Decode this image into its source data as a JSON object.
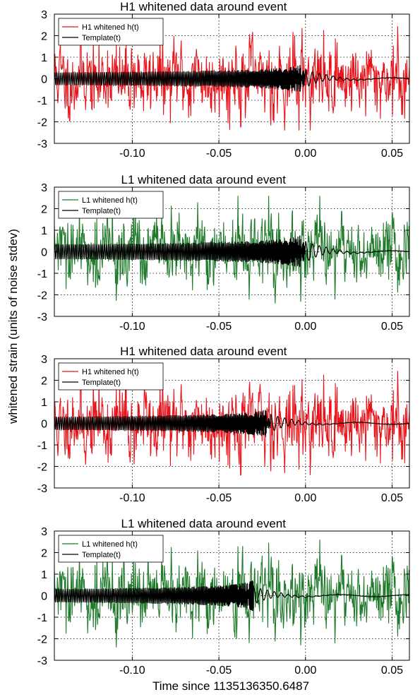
{
  "figure": {
    "ylabel": "whitened strain (units of noise stdev)",
    "xlabel": "Time since 1135136350.6487"
  },
  "colors": {
    "H1": "#e8141b",
    "L1": "#1f7a2b",
    "template": "#000000"
  },
  "chart_data": [
    {
      "type": "line",
      "title": "H1 whitened data around event",
      "detector": "H1",
      "xlim": [
        -0.145,
        0.06
      ],
      "ylim": [
        -3,
        3
      ],
      "xticks": [
        -0.1,
        -0.05,
        0.0,
        0.05
      ],
      "xtick_labels": [
        "-0.10",
        "-0.05",
        "0.00",
        "0.05"
      ],
      "yticks": [
        -3,
        -2,
        -1,
        0,
        1,
        2,
        3
      ],
      "ytick_labels": [
        "-3",
        "-2",
        "-1",
        "0",
        "1",
        "2",
        "3"
      ],
      "grid": "dotted",
      "legend": {
        "placement": "top-left",
        "entries": [
          "H1 whitened h(t)",
          "Template(t)"
        ]
      },
      "noise_amplitude": 0.8,
      "template_amplitude": 0.3,
      "merger_time": 0.0,
      "series": [
        {
          "name": "H1 whitened h(t)",
          "kind": "noisy",
          "seed": 11,
          "color_key": "H1"
        },
        {
          "name": "Template(t)",
          "kind": "chirp",
          "color_key": "template"
        }
      ]
    },
    {
      "type": "line",
      "title": "L1 whitened data around event",
      "detector": "L1",
      "xlim": [
        -0.145,
        0.06
      ],
      "ylim": [
        -3,
        3
      ],
      "xticks": [
        -0.1,
        -0.05,
        0.0,
        0.05
      ],
      "xtick_labels": [
        "-0.10",
        "-0.05",
        "0.00",
        "0.05"
      ],
      "yticks": [
        -3,
        -2,
        -1,
        0,
        1,
        2,
        3
      ],
      "ytick_labels": [
        "-3",
        "-2",
        "-1",
        "0",
        "1",
        "2",
        "3"
      ],
      "grid": "dotted",
      "legend": {
        "placement": "top-left",
        "entries": [
          "L1 whitened h(t)",
          "Template(t)"
        ]
      },
      "noise_amplitude": 0.75,
      "template_amplitude": 0.35,
      "merger_time": 0.0,
      "series": [
        {
          "name": "L1 whitened h(t)",
          "kind": "noisy",
          "seed": 29,
          "color_key": "L1"
        },
        {
          "name": "Template(t)",
          "kind": "chirp",
          "color_key": "template"
        }
      ]
    },
    {
      "type": "line",
      "title": "H1 whitened data around event",
      "detector": "H1",
      "xlim": [
        -0.145,
        0.06
      ],
      "ylim": [
        -3,
        3
      ],
      "xticks": [
        -0.1,
        -0.05,
        0.0,
        0.05
      ],
      "xtick_labels": [
        "-0.10",
        "-0.05",
        "0.00",
        "0.05"
      ],
      "yticks": [
        -3,
        -2,
        -1,
        0,
        1,
        2,
        3
      ],
      "ytick_labels": [
        "-3",
        "-2",
        "-1",
        "0",
        "1",
        "2",
        "3"
      ],
      "grid": "dotted",
      "legend": {
        "placement": "top-left",
        "entries": [
          "H1 whitened h(t)",
          "Template(t)"
        ]
      },
      "noise_amplitude": 0.8,
      "template_amplitude": 0.3,
      "merger_time": -0.02,
      "series": [
        {
          "name": "H1 whitened h(t)",
          "kind": "noisy",
          "seed": 11,
          "color_key": "H1"
        },
        {
          "name": "Template(t)",
          "kind": "chirp",
          "color_key": "template"
        }
      ]
    },
    {
      "type": "line",
      "title": "L1 whitened data around event",
      "detector": "L1",
      "xlim": [
        -0.145,
        0.06
      ],
      "ylim": [
        -3,
        3
      ],
      "xticks": [
        -0.1,
        -0.05,
        0.0,
        0.05
      ],
      "xtick_labels": [
        "-0.10",
        "-0.05",
        "0.00",
        "0.05"
      ],
      "yticks": [
        -3,
        -2,
        -1,
        0,
        1,
        2,
        3
      ],
      "ytick_labels": [
        "-3",
        "-2",
        "-1",
        "0",
        "1",
        "2",
        "3"
      ],
      "grid": "dotted",
      "legend": {
        "placement": "top-left",
        "entries": [
          "L1 whitened h(t)",
          "Template(t)"
        ]
      },
      "noise_amplitude": 0.75,
      "template_amplitude": 0.3,
      "merger_time": -0.03,
      "series": [
        {
          "name": "L1 whitened h(t)",
          "kind": "noisy",
          "seed": 29,
          "color_key": "L1"
        },
        {
          "name": "Template(t)",
          "kind": "chirp",
          "color_key": "template"
        }
      ]
    }
  ]
}
